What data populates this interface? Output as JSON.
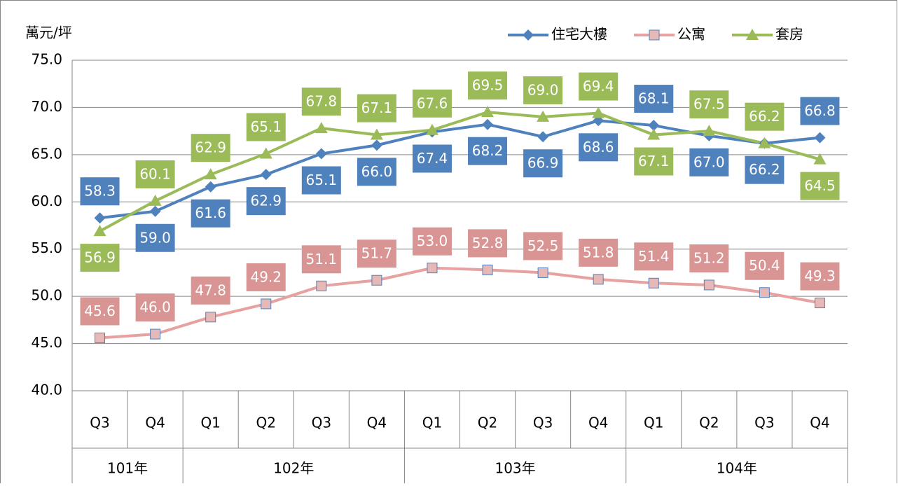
{
  "chart_data": {
    "type": "line",
    "y_axis_label": "萬元/坪",
    "categories": [
      "Q3",
      "Q4",
      "Q1",
      "Q2",
      "Q3",
      "Q4",
      "Q1",
      "Q2",
      "Q3",
      "Q4",
      "Q1",
      "Q2",
      "Q3",
      "Q4"
    ],
    "category_years": [
      "101年",
      "101年",
      "102年",
      "102年",
      "102年",
      "102年",
      "103年",
      "103年",
      "103年",
      "103年",
      "104年",
      "104年",
      "104年",
      "104年"
    ],
    "ylim": [
      40,
      75
    ],
    "yticks": [
      {
        "value": 40,
        "label": "40.0"
      },
      {
        "value": 45,
        "label": "45.0"
      },
      {
        "value": 50,
        "label": "50.0"
      },
      {
        "value": 55,
        "label": "55.0"
      },
      {
        "value": 60,
        "label": "60.0"
      },
      {
        "value": 65,
        "label": "65.0"
      },
      {
        "value": 70,
        "label": "70.0"
      },
      {
        "value": 75,
        "label": "75.0"
      }
    ],
    "grid": true,
    "legend": "top-right",
    "series": [
      {
        "name": "住宅大樓",
        "color": "#4f81bd",
        "marker": "diamond",
        "values": [
          58.3,
          59.0,
          61.6,
          62.9,
          65.1,
          66.0,
          67.4,
          68.2,
          66.9,
          68.6,
          68.1,
          67.0,
          66.2,
          66.8
        ],
        "value_labels": [
          "58.3",
          "59.0",
          "61.6",
          "62.9",
          "65.1",
          "66.0",
          "67.4",
          "68.2",
          "66.9",
          "68.6",
          "68.1",
          "67.0",
          "66.2",
          "66.8"
        ]
      },
      {
        "name": "公寓",
        "color": "#e6a1a0",
        "marker": "square",
        "values": [
          45.6,
          46.0,
          47.8,
          49.2,
          51.1,
          51.7,
          53.0,
          52.8,
          52.5,
          51.8,
          51.4,
          51.2,
          50.4,
          49.3
        ],
        "value_labels": [
          "45.6",
          "46.0",
          "47.8",
          "49.2",
          "51.1",
          "51.7",
          "53.0",
          "52.8",
          "52.5",
          "51.8",
          "51.4",
          "51.2",
          "50.4",
          "49.3"
        ]
      },
      {
        "name": "套房",
        "color": "#9bbb59",
        "marker": "triangle",
        "values": [
          56.9,
          60.1,
          62.9,
          65.1,
          67.8,
          67.1,
          67.6,
          69.5,
          69.0,
          69.4,
          67.1,
          67.5,
          66.2,
          64.5
        ],
        "value_labels": [
          "56.9",
          "60.1",
          "62.9",
          "65.1",
          "67.8",
          "67.1",
          "67.6",
          "69.5",
          "69.0",
          "69.4",
          "67.1",
          "67.5",
          "66.2",
          "64.5"
        ]
      }
    ]
  }
}
